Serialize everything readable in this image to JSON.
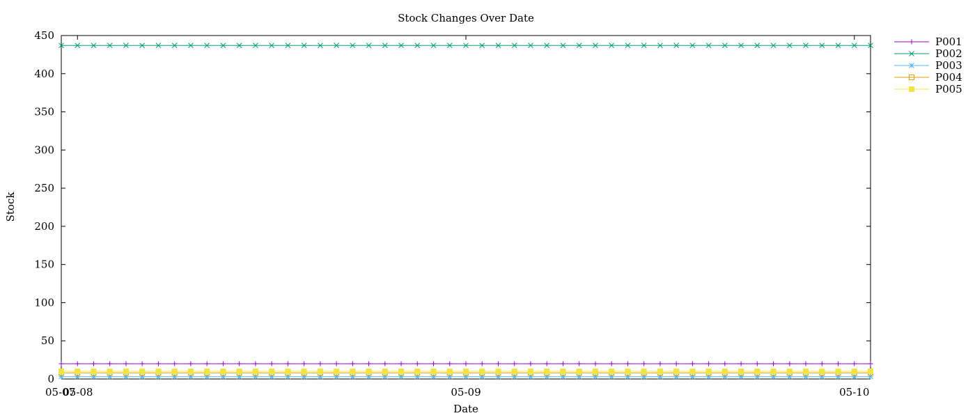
{
  "chart_data": {
    "type": "line",
    "title": "Stock Changes Over Date",
    "xlabel": "Date",
    "ylabel": "Stock",
    "ylim": [
      0,
      450
    ],
    "y_ticks": [
      0,
      50,
      100,
      150,
      200,
      250,
      300,
      350,
      400,
      450
    ],
    "x_ticks": [
      {
        "label": "05-07",
        "value": 0
      },
      {
        "label": "05-08",
        "value": 1
      },
      {
        "label": "05-09",
        "value": 25
      },
      {
        "label": "05-10",
        "value": 49
      }
    ],
    "xlim": [
      0,
      50
    ],
    "grid": false,
    "legend_position": "right",
    "point_count": 51,
    "series": [
      {
        "name": "P001",
        "value": 20,
        "color": "#9400d3",
        "marker": "plus"
      },
      {
        "name": "P002",
        "value": 437,
        "color": "#009e73",
        "marker": "cross"
      },
      {
        "name": "P003",
        "value": 3,
        "color": "#56b4e9",
        "marker": "star"
      },
      {
        "name": "P004",
        "value": 8,
        "color": "#e69f00",
        "marker": "open-square"
      },
      {
        "name": "P005",
        "value": 10,
        "color": "#f0e442",
        "marker": "filled-square"
      }
    ]
  }
}
